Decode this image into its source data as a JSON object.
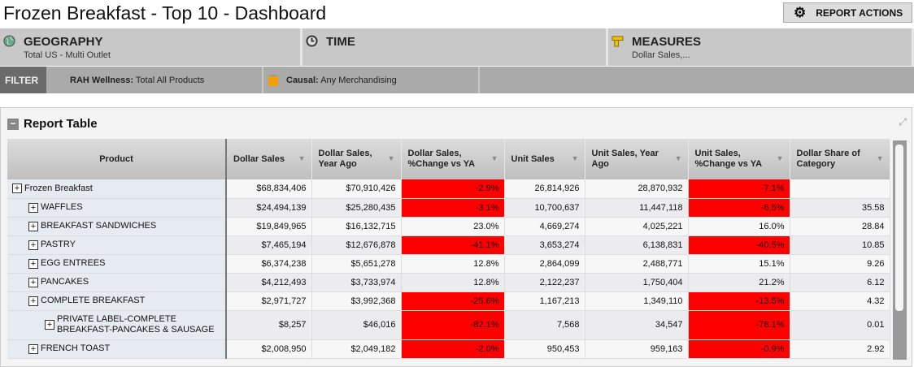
{
  "header": {
    "title": "Frozen Breakfast - Top 10 - Dashboard",
    "report_actions": "REPORT ACTIONS"
  },
  "dimensions": [
    {
      "label": "GEOGRAPHY",
      "value": "Total US - Multi Outlet",
      "icon": "globe-icon"
    },
    {
      "label": "TIME",
      "value": "",
      "icon": "clock-icon"
    },
    {
      "label": "MEASURES",
      "value": "Dollar Sales,...",
      "icon": "ruler-icon"
    }
  ],
  "filter": {
    "label": "FILTER",
    "items": [
      {
        "key": "RAH Wellness:",
        "value": " Total All Products"
      },
      {
        "key": "Causal:",
        "value": " Any Merchandising"
      }
    ]
  },
  "report": {
    "title": "Report Table",
    "columns": [
      "Product",
      "Dollar Sales",
      "Dollar Sales, Year Ago",
      "Dollar Sales, %Change vs YA",
      "Unit Sales",
      "Unit Sales, Year Ago",
      "Unit Sales, %Change vs YA",
      "Dollar Share of Category"
    ],
    "colors": {
      "negative": "#ff0000"
    },
    "rows": [
      {
        "level": 0,
        "product": "Frozen Breakfast",
        "cells": [
          "$68,834,406",
          "$70,910,426",
          "-2.9%",
          "26,814,926",
          "28,870,932",
          "-7.1%",
          ""
        ]
      },
      {
        "level": 1,
        "product": "WAFFLES",
        "cells": [
          "$24,494,139",
          "$25,280,435",
          "-3.1%",
          "10,700,637",
          "11,447,118",
          "-6.5%",
          "35.58"
        ]
      },
      {
        "level": 1,
        "product": "BREAKFAST SANDWICHES",
        "cells": [
          "$19,849,965",
          "$16,132,715",
          "23.0%",
          "4,669,274",
          "4,025,221",
          "16.0%",
          "28.84"
        ]
      },
      {
        "level": 1,
        "product": "PASTRY",
        "cells": [
          "$7,465,194",
          "$12,676,878",
          "-41.1%",
          "3,653,274",
          "6,138,831",
          "-40.5%",
          "10.85"
        ]
      },
      {
        "level": 1,
        "product": "EGG ENTREES",
        "cells": [
          "$6,374,238",
          "$5,651,278",
          "12.8%",
          "2,864,099",
          "2,488,771",
          "15.1%",
          "9.26"
        ]
      },
      {
        "level": 1,
        "product": "PANCAKES",
        "cells": [
          "$4,212,493",
          "$3,733,974",
          "12.8%",
          "2,122,237",
          "1,750,404",
          "21.2%",
          "6.12"
        ]
      },
      {
        "level": 1,
        "product": "COMPLETE BREAKFAST",
        "cells": [
          "$2,971,727",
          "$3,992,368",
          "-25.6%",
          "1,167,213",
          "1,349,110",
          "-13.5%",
          "4.32"
        ]
      },
      {
        "level": 2,
        "product": "PRIVATE LABEL-COMPLETE BREAKFAST-PANCAKES & SAUSAGE",
        "cells": [
          "$8,257",
          "$46,016",
          "-82.1%",
          "7,568",
          "34,547",
          "-78.1%",
          "0.01"
        ]
      },
      {
        "level": 1,
        "product": "FRENCH TOAST",
        "cells": [
          "$2,008,950",
          "$2,049,182",
          "-2.0%",
          "950,453",
          "959,163",
          "-0.9%",
          "2.92"
        ]
      }
    ]
  }
}
